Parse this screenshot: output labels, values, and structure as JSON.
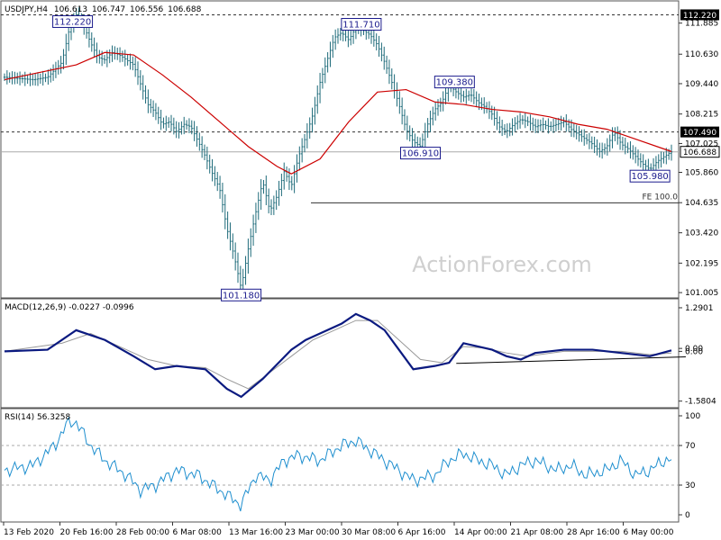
{
  "chart_data": [
    {
      "type": "candlestick",
      "title": "USDJPY,H4",
      "ohlc": {
        "open": "106.613",
        "high": "106.747",
        "low": "106.556",
        "close": "106.688"
      },
      "y_ticks": [
        "111.885",
        "110.630",
        "109.440",
        "108.215",
        "107.025",
        "105.860",
        "104.635",
        "103.420",
        "102.195",
        "101.005"
      ],
      "ylim": [
        100.9,
        112.6
      ],
      "current_price": "106.688",
      "levels": [
        {
          "label": "112.220",
          "value": 112.22
        },
        {
          "label": "107.490",
          "value": 107.49
        }
      ],
      "fe_line": {
        "label": "FE 100.0",
        "value": 104.63
      },
      "annotations": [
        {
          "label": "112.220",
          "value": 112.22
        },
        {
          "label": "101.180",
          "value": 101.18
        },
        {
          "label": "111.710",
          "value": 111.71
        },
        {
          "label": "109.380",
          "value": 109.38
        },
        {
          "label": "106.910",
          "value": 106.91
        },
        {
          "label": "105.980",
          "value": 105.98
        }
      ],
      "price_path": [
        [
          0,
          109.7
        ],
        [
          4,
          109.6
        ],
        [
          6,
          109.7
        ],
        [
          8,
          110.3
        ],
        [
          9,
          111.6
        ],
        [
          10,
          112.22
        ],
        [
          11,
          111.8
        ],
        [
          12,
          111.1
        ],
        [
          13,
          110.5
        ],
        [
          14,
          110.4
        ],
        [
          15,
          110.7
        ],
        [
          16,
          110.6
        ],
        [
          17,
          110.4
        ],
        [
          18,
          110.2
        ],
        [
          19,
          109.4
        ],
        [
          20,
          108.6
        ],
        [
          21,
          108.3
        ],
        [
          22,
          107.8
        ],
        [
          23,
          107.9
        ],
        [
          24,
          107.5
        ],
        [
          25,
          107.8
        ],
        [
          26,
          107.7
        ],
        [
          27,
          107.1
        ],
        [
          28,
          106.5
        ],
        [
          29,
          105.8
        ],
        [
          30,
          105.2
        ],
        [
          31,
          103.6
        ],
        [
          32,
          102.5
        ],
        [
          33,
          101.18
        ],
        [
          34,
          102.8
        ],
        [
          35,
          104.2
        ],
        [
          36,
          105.5
        ],
        [
          37,
          104.3
        ],
        [
          38,
          104.9
        ],
        [
          39,
          105.9
        ],
        [
          40,
          105.3
        ],
        [
          41,
          106.5
        ],
        [
          42,
          107.3
        ],
        [
          43,
          108.2
        ],
        [
          44,
          109.5
        ],
        [
          45,
          110.4
        ],
        [
          46,
          111.3
        ],
        [
          47,
          111.5
        ],
        [
          48,
          111.2
        ],
        [
          49,
          111.71
        ],
        [
          50,
          111.6
        ],
        [
          51,
          111.4
        ],
        [
          52,
          111.0
        ],
        [
          53,
          110.3
        ],
        [
          54,
          109.5
        ],
        [
          55,
          108.6
        ],
        [
          56,
          107.6
        ],
        [
          57,
          107.1
        ],
        [
          58,
          106.91
        ],
        [
          59,
          107.8
        ],
        [
          60,
          108.4
        ],
        [
          61,
          108.7
        ],
        [
          62,
          109.38
        ],
        [
          63,
          109.1
        ],
        [
          64,
          108.9
        ],
        [
          65,
          109.0
        ],
        [
          66,
          108.7
        ],
        [
          67,
          108.5
        ],
        [
          68,
          108.2
        ],
        [
          69,
          107.7
        ],
        [
          70,
          107.5
        ],
        [
          71,
          107.8
        ],
        [
          72,
          108.0
        ],
        [
          73,
          107.9
        ],
        [
          74,
          107.7
        ],
        [
          75,
          107.8
        ],
        [
          76,
          107.7
        ],
        [
          77,
          107.8
        ],
        [
          78,
          107.9
        ],
        [
          79,
          107.6
        ],
        [
          80,
          107.4
        ],
        [
          81,
          107.2
        ],
        [
          82,
          107.0
        ],
        [
          83,
          106.7
        ],
        [
          84,
          106.9
        ],
        [
          85,
          107.5
        ],
        [
          86,
          107.0
        ],
        [
          87,
          106.8
        ],
        [
          88,
          106.5
        ],
        [
          89,
          106.2
        ],
        [
          90,
          105.98
        ],
        [
          91,
          106.3
        ],
        [
          92,
          106.5
        ],
        [
          93,
          106.688
        ]
      ],
      "ma_path": [
        [
          0,
          109.6
        ],
        [
          10,
          110.2
        ],
        [
          14,
          110.7
        ],
        [
          18,
          110.6
        ],
        [
          22,
          109.8
        ],
        [
          26,
          108.9
        ],
        [
          30,
          107.9
        ],
        [
          34,
          106.9
        ],
        [
          38,
          106.1
        ],
        [
          40,
          105.8
        ],
        [
          44,
          106.4
        ],
        [
          48,
          107.9
        ],
        [
          52,
          109.1
        ],
        [
          56,
          109.2
        ],
        [
          60,
          108.7
        ],
        [
          64,
          108.6
        ],
        [
          68,
          108.4
        ],
        [
          72,
          108.3
        ],
        [
          76,
          108.1
        ],
        [
          80,
          107.8
        ],
        [
          84,
          107.6
        ],
        [
          88,
          107.2
        ],
        [
          92,
          106.8
        ],
        [
          93,
          106.7
        ]
      ]
    },
    {
      "type": "line",
      "title": "MACD(12,26,9) -0.0227 -0.0996",
      "y_ticks": [
        "1.2901",
        "0.00",
        "0.00",
        "-1.5804"
      ],
      "ylim": [
        -1.7,
        1.4
      ],
      "macd_path": [
        [
          0,
          -0.05
        ],
        [
          6,
          0.0
        ],
        [
          10,
          0.6
        ],
        [
          14,
          0.3
        ],
        [
          18,
          -0.2
        ],
        [
          21,
          -0.6
        ],
        [
          24,
          -0.5
        ],
        [
          28,
          -0.6
        ],
        [
          31,
          -1.2
        ],
        [
          33,
          -1.45
        ],
        [
          36,
          -0.9
        ],
        [
          40,
          0.0
        ],
        [
          42,
          0.3
        ],
        [
          44,
          0.5
        ],
        [
          47,
          0.8
        ],
        [
          49,
          1.1
        ],
        [
          51,
          0.9
        ],
        [
          53,
          0.6
        ],
        [
          55,
          0.0
        ],
        [
          57,
          -0.6
        ],
        [
          60,
          -0.5
        ],
        [
          62,
          -0.4
        ],
        [
          64,
          0.2
        ],
        [
          66,
          0.1
        ],
        [
          68,
          0.0
        ],
        [
          70,
          -0.2
        ],
        [
          72,
          -0.3
        ],
        [
          74,
          -0.1
        ],
        [
          78,
          0.0
        ],
        [
          82,
          0.0
        ],
        [
          86,
          -0.1
        ],
        [
          90,
          -0.2
        ],
        [
          93,
          -0.02
        ]
      ],
      "signal_path": [
        [
          0,
          -0.05
        ],
        [
          8,
          0.2
        ],
        [
          12,
          0.5
        ],
        [
          16,
          0.1
        ],
        [
          20,
          -0.3
        ],
        [
          24,
          -0.5
        ],
        [
          28,
          -0.55
        ],
        [
          31,
          -0.9
        ],
        [
          34,
          -1.2
        ],
        [
          37,
          -0.7
        ],
        [
          40,
          -0.2
        ],
        [
          43,
          0.3
        ],
        [
          46,
          0.6
        ],
        [
          49,
          0.9
        ],
        [
          52,
          0.9
        ],
        [
          55,
          0.3
        ],
        [
          58,
          -0.3
        ],
        [
          61,
          -0.4
        ],
        [
          64,
          0.1
        ],
        [
          67,
          0.05
        ],
        [
          70,
          -0.1
        ],
        [
          73,
          -0.2
        ],
        [
          78,
          -0.05
        ],
        [
          86,
          -0.05
        ],
        [
          90,
          -0.15
        ],
        [
          93,
          -0.1
        ]
      ],
      "trendline": {
        "from": [
          63,
          -0.42
        ],
        "to": [
          95,
          -0.22
        ]
      }
    },
    {
      "type": "line",
      "title": "RSI(14) 56.3258",
      "y_ticks": [
        "100",
        "70",
        "30",
        "0"
      ],
      "ylim": [
        0,
        100
      ],
      "levels": [
        70,
        30
      ],
      "rsi_path": [
        [
          0,
          45
        ],
        [
          4,
          50
        ],
        [
          7,
          70
        ],
        [
          9,
          95
        ],
        [
          10,
          93
        ],
        [
          12,
          70
        ],
        [
          14,
          55
        ],
        [
          17,
          40
        ],
        [
          19,
          25
        ],
        [
          21,
          30
        ],
        [
          24,
          45
        ],
        [
          27,
          40
        ],
        [
          30,
          25
        ],
        [
          33,
          10
        ],
        [
          35,
          40
        ],
        [
          37,
          35
        ],
        [
          39,
          55
        ],
        [
          41,
          60
        ],
        [
          44,
          55
        ],
        [
          47,
          70
        ],
        [
          49,
          75
        ],
        [
          51,
          65
        ],
        [
          53,
          55
        ],
        [
          55,
          45
        ],
        [
          57,
          35
        ],
        [
          60,
          40
        ],
        [
          62,
          55
        ],
        [
          64,
          62
        ],
        [
          66,
          55
        ],
        [
          68,
          50
        ],
        [
          70,
          40
        ],
        [
          72,
          50
        ],
        [
          74,
          55
        ],
        [
          77,
          45
        ],
        [
          79,
          50
        ],
        [
          81,
          40
        ],
        [
          84,
          45
        ],
        [
          86,
          55
        ],
        [
          88,
          40
        ],
        [
          90,
          45
        ],
        [
          92,
          55
        ],
        [
          93,
          56
        ]
      ]
    }
  ],
  "x_labels": [
    "13 Feb 2020",
    "20 Feb 16:00",
    "28 Feb 00:00",
    "6 Mar 08:00",
    "13 Mar 16:00",
    "23 Mar 00:00",
    "30 Mar 08:00",
    "6 Apr 16:00",
    "14 Apr 00:00",
    "21 Apr 08:00",
    "28 Apr 16:00",
    "6 May 00:00"
  ],
  "watermark": "ActionForex.com",
  "colors": {
    "candles": "#1e6b7a",
    "ma": "#cc0000",
    "macd": "#0b1a80",
    "signal": "#999999",
    "rsi": "#1f8fcf",
    "annot": "#1a1a8c"
  }
}
